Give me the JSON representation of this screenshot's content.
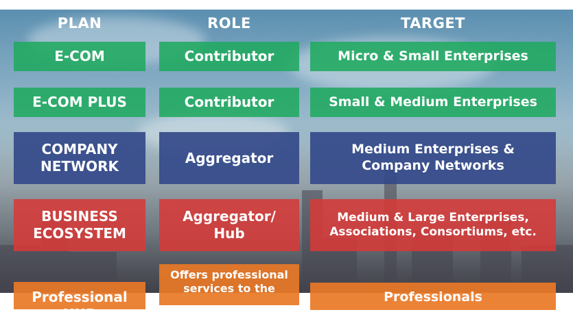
{
  "headers": {
    "plan": "PLAN",
    "role": "ROLE",
    "target": "TARGET"
  },
  "rows": [
    {
      "plan": "E-COM",
      "role": "Contributor",
      "target": "Micro & Small Enterprises",
      "color": "#20aa60"
    },
    {
      "plan": "E-COM PLUS",
      "role": "Contributor",
      "target": "Small & Medium Enterprises",
      "color": "#20aa60"
    },
    {
      "plan": "COMPANY NETWORK",
      "role": "Aggregator",
      "target": "Medium Enterprises & Company Networks",
      "color": "#344a8a"
    },
    {
      "plan": "BUSINESS ECOSYSTEM",
      "role": "Aggregator/ Hub",
      "target": "Medium & Large Enterprises, Associations, Consortiums, etc.",
      "color": "#d63a38"
    },
    {
      "plan": "Professional HUB",
      "role": "Offers professional services to the",
      "target": "Professionals",
      "color": "#e97826"
    }
  ]
}
